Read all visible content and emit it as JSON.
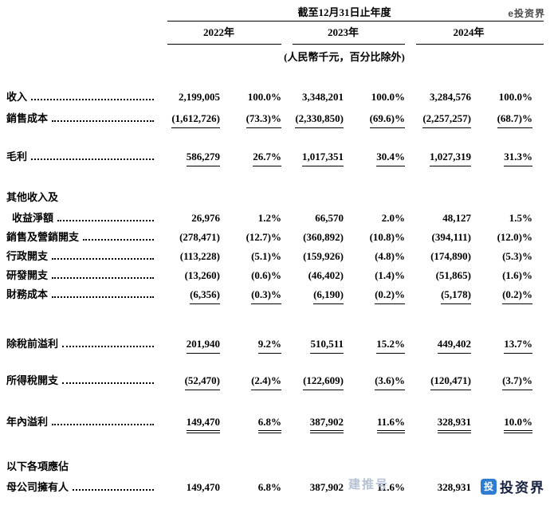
{
  "header": {
    "period": "截至12月31日止年度",
    "years": [
      "2022年",
      "2023年",
      "2024年"
    ],
    "unit_note": "(人民幣千元，百分比除外)"
  },
  "rows": [
    {
      "label": "收入",
      "values": [
        "2,199,005",
        "100.0%",
        "3,348,201",
        "100.0%",
        "3,284,576",
        "100.0%"
      ]
    },
    {
      "label": "銷售成本",
      "values": [
        "(1,612,726)",
        "(73.3)%",
        "(2,330,850)",
        "(69.6)%",
        "(2,257,257)",
        "(68.7)%"
      ]
    },
    {
      "label": "毛利",
      "values": [
        "586,279",
        "26.7%",
        "1,017,351",
        "30.4%",
        "1,027,319",
        "31.3%"
      ]
    },
    {
      "label": "其他收入及",
      "values": []
    },
    {
      "label": "收益淨額",
      "values": [
        "26,976",
        "1.2%",
        "66,570",
        "2.0%",
        "48,127",
        "1.5%"
      ]
    },
    {
      "label": "銷售及營銷開支",
      "values": [
        "(278,471)",
        "(12.7)%",
        "(360,892)",
        "(10.8)%",
        "(394,111)",
        "(12.0)%"
      ]
    },
    {
      "label": "行政開支",
      "values": [
        "(113,228)",
        "(5.1)%",
        "(159,926)",
        "(4.8)%",
        "(174,890)",
        "(5.3)%"
      ]
    },
    {
      "label": "研發開支",
      "values": [
        "(13,260)",
        "(0.6)%",
        "(46,402)",
        "(1.4)%",
        "(51,865)",
        "(1.6)%"
      ]
    },
    {
      "label": "財務成本",
      "values": [
        "(6,356)",
        "(0.3)%",
        "(6,190)",
        "(0.2)%",
        "(5,178)",
        "(0.2)%"
      ]
    },
    {
      "label": "除稅前溢利",
      "values": [
        "201,940",
        "9.2%",
        "510,511",
        "15.2%",
        "449,402",
        "13.7%"
      ]
    },
    {
      "label": "所得稅開支",
      "values": [
        "(52,470)",
        "(2.4)%",
        "(122,609)",
        "(3.6)%",
        "(120,471)",
        "(3.7)%"
      ]
    },
    {
      "label": "年內溢利",
      "values": [
        "149,470",
        "6.8%",
        "387,902",
        "11.6%",
        "328,931",
        "10.0%"
      ]
    },
    {
      "label": "以下各項應佔",
      "values": []
    },
    {
      "label": "母公司擁有人",
      "values": [
        "149,470",
        "6.8%",
        "387,902",
        "11.6%",
        "328,931",
        "10.0%"
      ]
    }
  ],
  "watermarks": {
    "top_right": "e投资界",
    "mid": "建推号",
    "bottom_text": "投资界",
    "logo_glyph": "投",
    "logo_color": "#2e7dd2"
  }
}
